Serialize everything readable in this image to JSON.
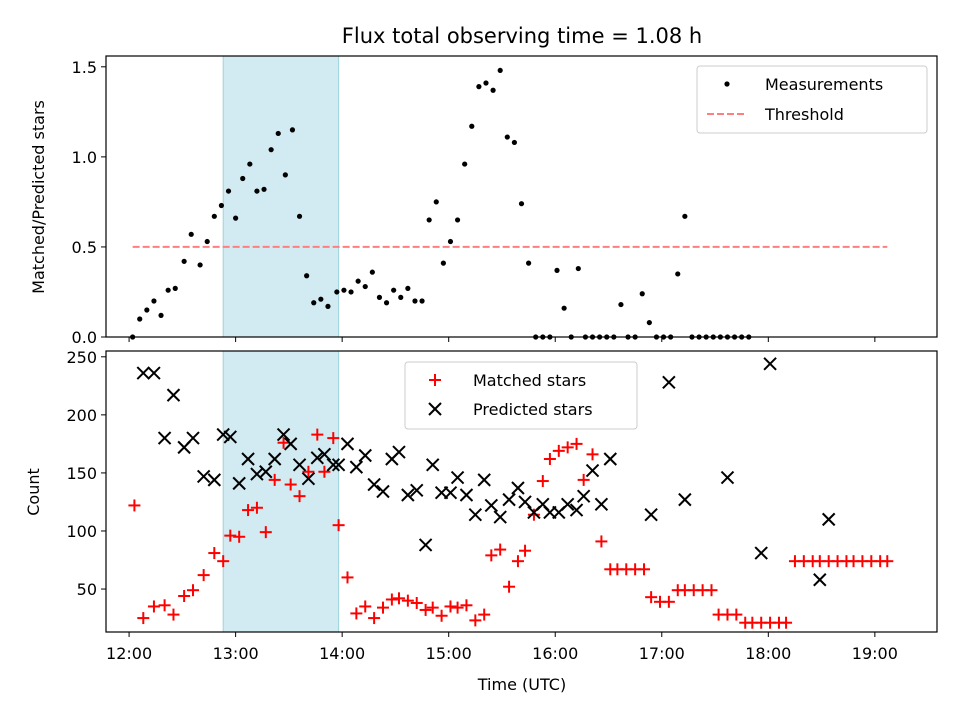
{
  "chart_data": [
    {
      "type": "scatter",
      "title": "Flux total observing time = 1.08 h",
      "xlabel": "",
      "ylabel": "Matched/Predicted stars",
      "xlim": [
        "11:47",
        "19:35"
      ],
      "ylim": [
        0,
        1.56
      ],
      "xticks": [
        "12:00",
        "13:00",
        "14:00",
        "15:00",
        "16:00",
        "17:00",
        "18:00",
        "19:00"
      ],
      "yticks": [
        "0.0",
        "0.5",
        "1.0",
        "1.5"
      ],
      "shaded_span": [
        "12:53",
        "13:58"
      ],
      "shade_color": "#add8e6",
      "legend": {
        "location": "upper right",
        "entries": [
          "Measurements",
          "Threshold"
        ]
      },
      "series": [
        {
          "name": "Measurements",
          "color": "#000000",
          "marker": "dot",
          "points": [
            [
              "12:02",
              0.0
            ],
            [
              "12:06",
              0.1
            ],
            [
              "12:10",
              0.15
            ],
            [
              "12:14",
              0.2
            ],
            [
              "12:18",
              0.12
            ],
            [
              "12:22",
              0.26
            ],
            [
              "12:26",
              0.27
            ],
            [
              "12:31",
              0.42
            ],
            [
              "12:35",
              0.57
            ],
            [
              "12:40",
              0.4
            ],
            [
              "12:44",
              0.53
            ],
            [
              "12:48",
              0.67
            ],
            [
              "12:52",
              0.73
            ],
            [
              "12:56",
              0.81
            ],
            [
              "13:00",
              0.66
            ],
            [
              "13:04",
              0.88
            ],
            [
              "13:08",
              0.96
            ],
            [
              "13:12",
              0.81
            ],
            [
              "13:16",
              0.82
            ],
            [
              "13:20",
              1.04
            ],
            [
              "13:24",
              1.13
            ],
            [
              "13:28",
              0.9
            ],
            [
              "13:32",
              1.15
            ],
            [
              "13:36",
              0.67
            ],
            [
              "13:40",
              0.34
            ],
            [
              "13:44",
              0.19
            ],
            [
              "13:48",
              0.21
            ],
            [
              "13:52",
              0.17
            ],
            [
              "13:57",
              0.25
            ],
            [
              "14:01",
              0.26
            ],
            [
              "14:05",
              0.25
            ],
            [
              "14:09",
              0.31
            ],
            [
              "14:13",
              0.28
            ],
            [
              "14:17",
              0.36
            ],
            [
              "14:21",
              0.22
            ],
            [
              "14:25",
              0.19
            ],
            [
              "14:29",
              0.26
            ],
            [
              "14:33",
              0.22
            ],
            [
              "14:37",
              0.27
            ],
            [
              "14:41",
              0.2
            ],
            [
              "14:45",
              0.2
            ],
            [
              "14:49",
              0.65
            ],
            [
              "14:53",
              0.75
            ],
            [
              "14:57",
              0.41
            ],
            [
              "15:01",
              0.53
            ],
            [
              "15:05",
              0.65
            ],
            [
              "15:09",
              0.96
            ],
            [
              "15:13",
              1.17
            ],
            [
              "15:17",
              1.39
            ],
            [
              "15:21",
              1.41
            ],
            [
              "15:25",
              1.37
            ],
            [
              "15:29",
              1.48
            ],
            [
              "15:33",
              1.11
            ],
            [
              "15:37",
              1.08
            ],
            [
              "15:41",
              0.74
            ],
            [
              "15:45",
              0.41
            ],
            [
              "15:49",
              0.0
            ],
            [
              "15:53",
              0.0
            ],
            [
              "15:57",
              0.0
            ],
            [
              "16:01",
              0.37
            ],
            [
              "16:05",
              0.16
            ],
            [
              "16:09",
              0.0
            ],
            [
              "16:13",
              0.38
            ],
            [
              "16:17",
              0.0
            ],
            [
              "16:21",
              0.0
            ],
            [
              "16:25",
              0.0
            ],
            [
              "16:29",
              0.0
            ],
            [
              "16:33",
              0.0
            ],
            [
              "16:37",
              0.18
            ],
            [
              "16:41",
              0.0
            ],
            [
              "16:45",
              0.0
            ],
            [
              "16:49",
              0.24
            ],
            [
              "16:53",
              0.08
            ],
            [
              "16:57",
              0.0
            ],
            [
              "17:01",
              0.0
            ],
            [
              "17:05",
              0.0
            ],
            [
              "17:09",
              0.35
            ],
            [
              "17:13",
              0.67
            ],
            [
              "17:17",
              0.0
            ],
            [
              "17:21",
              0.0
            ],
            [
              "17:25",
              0.0
            ],
            [
              "17:29",
              0.0
            ],
            [
              "17:33",
              0.0
            ],
            [
              "17:37",
              0.0
            ],
            [
              "17:41",
              0.0
            ],
            [
              "17:45",
              0.0
            ],
            [
              "17:49",
              0.0
            ]
          ]
        },
        {
          "name": "Threshold",
          "color": "#ff7f7f",
          "line_style": "dashed",
          "points": [
            [
              "12:02",
              0.5
            ],
            [
              "19:07",
              0.5
            ]
          ]
        }
      ]
    },
    {
      "type": "scatter",
      "title": "",
      "xlabel": "Time (UTC)",
      "ylabel": "Count",
      "xlim": [
        "11:47",
        "19:35"
      ],
      "ylim": [
        13,
        255
      ],
      "xticks": [
        "12:00",
        "13:00",
        "14:00",
        "15:00",
        "16:00",
        "17:00",
        "18:00",
        "19:00"
      ],
      "yticks": [
        "50",
        "100",
        "150",
        "200",
        "250"
      ],
      "shaded_span": [
        "12:53",
        "13:58"
      ],
      "shade_color": "#add8e6",
      "legend": {
        "location": "upper center",
        "entries": [
          "Matched stars",
          "Predicted stars"
        ]
      },
      "series": [
        {
          "name": "Matched stars",
          "color": "#ff0000",
          "marker": "plus",
          "points": [
            [
              "12:03",
              122
            ],
            [
              "12:08",
              25
            ],
            [
              "12:14",
              35
            ],
            [
              "12:20",
              36
            ],
            [
              "12:25",
              28
            ],
            [
              "12:31",
              44
            ],
            [
              "12:36",
              49
            ],
            [
              "12:42",
              62
            ],
            [
              "12:48",
              81
            ],
            [
              "12:53",
              74
            ],
            [
              "12:57",
              96
            ],
            [
              "13:02",
              95
            ],
            [
              "13:07",
              118
            ],
            [
              "13:12",
              120
            ],
            [
              "13:17",
              99
            ],
            [
              "13:22",
              144
            ],
            [
              "13:27",
              176
            ],
            [
              "13:31",
              140
            ],
            [
              "13:36",
              130
            ],
            [
              "13:41",
              151
            ],
            [
              "13:46",
              183
            ],
            [
              "13:50",
              151
            ],
            [
              "13:55",
              180
            ],
            [
              "13:58",
              105
            ],
            [
              "14:03",
              60
            ],
            [
              "14:08",
              29
            ],
            [
              "14:13",
              35
            ],
            [
              "14:18",
              25
            ],
            [
              "14:23",
              34
            ],
            [
              "14:28",
              41
            ],
            [
              "14:32",
              42
            ],
            [
              "14:37",
              40
            ],
            [
              "14:42",
              38
            ],
            [
              "14:47",
              32
            ],
            [
              "14:51",
              34
            ],
            [
              "14:56",
              27
            ],
            [
              "15:01",
              35
            ],
            [
              "15:05",
              34
            ],
            [
              "15:10",
              36
            ],
            [
              "15:15",
              23
            ],
            [
              "15:20",
              28
            ],
            [
              "15:24",
              79
            ],
            [
              "15:29",
              84
            ],
            [
              "15:34",
              52
            ],
            [
              "15:39",
              74
            ],
            [
              "15:43",
              83
            ],
            [
              "15:48",
              114
            ],
            [
              "15:53",
              143
            ],
            [
              "15:57",
              162
            ],
            [
              "16:02",
              169
            ],
            [
              "16:07",
              172
            ],
            [
              "16:12",
              175
            ],
            [
              "16:16",
              144
            ],
            [
              "16:21",
              166
            ],
            [
              "16:26",
              91
            ],
            [
              "16:31",
              67
            ],
            [
              "16:35",
              67
            ],
            [
              "16:40",
              67
            ],
            [
              "16:45",
              67
            ],
            [
              "16:50",
              67
            ],
            [
              "16:54",
              43
            ],
            [
              "16:59",
              39
            ],
            [
              "17:04",
              39
            ],
            [
              "17:09",
              49
            ],
            [
              "17:13",
              49
            ],
            [
              "17:18",
              49
            ],
            [
              "17:23",
              49
            ],
            [
              "17:28",
              49
            ],
            [
              "17:32",
              28
            ],
            [
              "17:37",
              28
            ],
            [
              "17:42",
              28
            ],
            [
              "17:47",
              21
            ],
            [
              "17:51",
              21
            ],
            [
              "17:56",
              21
            ],
            [
              "18:01",
              21
            ],
            [
              "18:06",
              21
            ],
            [
              "18:10",
              21
            ],
            [
              "18:15",
              74
            ],
            [
              "18:20",
              74
            ],
            [
              "18:25",
              74
            ],
            [
              "18:29",
              74
            ],
            [
              "18:34",
              74
            ],
            [
              "18:39",
              74
            ],
            [
              "18:44",
              74
            ],
            [
              "18:48",
              74
            ],
            [
              "18:53",
              74
            ],
            [
              "18:58",
              74
            ],
            [
              "19:03",
              74
            ],
            [
              "19:07",
              74
            ]
          ]
        },
        {
          "name": "Predicted stars",
          "color": "#000000",
          "marker": "x",
          "points": [
            [
              "12:08",
              236
            ],
            [
              "12:14",
              236
            ],
            [
              "12:20",
              180
            ],
            [
              "12:25",
              217
            ],
            [
              "12:31",
              172
            ],
            [
              "12:36",
              180
            ],
            [
              "12:42",
              147
            ],
            [
              "12:48",
              144
            ],
            [
              "12:53",
              183
            ],
            [
              "12:57",
              181
            ],
            [
              "13:02",
              141
            ],
            [
              "13:07",
              162
            ],
            [
              "13:12",
              149
            ],
            [
              "13:17",
              151
            ],
            [
              "13:22",
              162
            ],
            [
              "13:27",
              183
            ],
            [
              "13:31",
              175
            ],
            [
              "13:36",
              157
            ],
            [
              "13:41",
              145
            ],
            [
              "13:46",
              163
            ],
            [
              "13:50",
              166
            ],
            [
              "13:55",
              157
            ],
            [
              "13:58",
              157
            ],
            [
              "14:03",
              175
            ],
            [
              "14:08",
              155
            ],
            [
              "14:13",
              165
            ],
            [
              "14:18",
              140
            ],
            [
              "14:23",
              134
            ],
            [
              "14:28",
              162
            ],
            [
              "14:32",
              168
            ],
            [
              "14:37",
              131
            ],
            [
              "14:42",
              135
            ],
            [
              "14:47",
              88
            ],
            [
              "14:51",
              157
            ],
            [
              "14:56",
              133
            ],
            [
              "15:01",
              133
            ],
            [
              "15:05",
              146
            ],
            [
              "15:10",
              131
            ],
            [
              "15:15",
              114
            ],
            [
              "15:20",
              144
            ],
            [
              "15:24",
              122
            ],
            [
              "15:29",
              112
            ],
            [
              "15:34",
              127
            ],
            [
              "15:39",
              137
            ],
            [
              "15:43",
              125
            ],
            [
              "15:48",
              116
            ],
            [
              "15:53",
              123
            ],
            [
              "15:57",
              116
            ],
            [
              "16:02",
              116
            ],
            [
              "16:07",
              123
            ],
            [
              "16:12",
              118
            ],
            [
              "16:16",
              130
            ],
            [
              "16:21",
              152
            ],
            [
              "16:26",
              123
            ],
            [
              "16:31",
              162
            ],
            [
              "16:54",
              114
            ],
            [
              "17:04",
              228
            ],
            [
              "17:13",
              127
            ],
            [
              "17:37",
              146
            ],
            [
              "17:56",
              81
            ],
            [
              "18:01",
              244
            ],
            [
              "18:29",
              58
            ],
            [
              "18:34",
              110
            ]
          ]
        }
      ]
    }
  ]
}
